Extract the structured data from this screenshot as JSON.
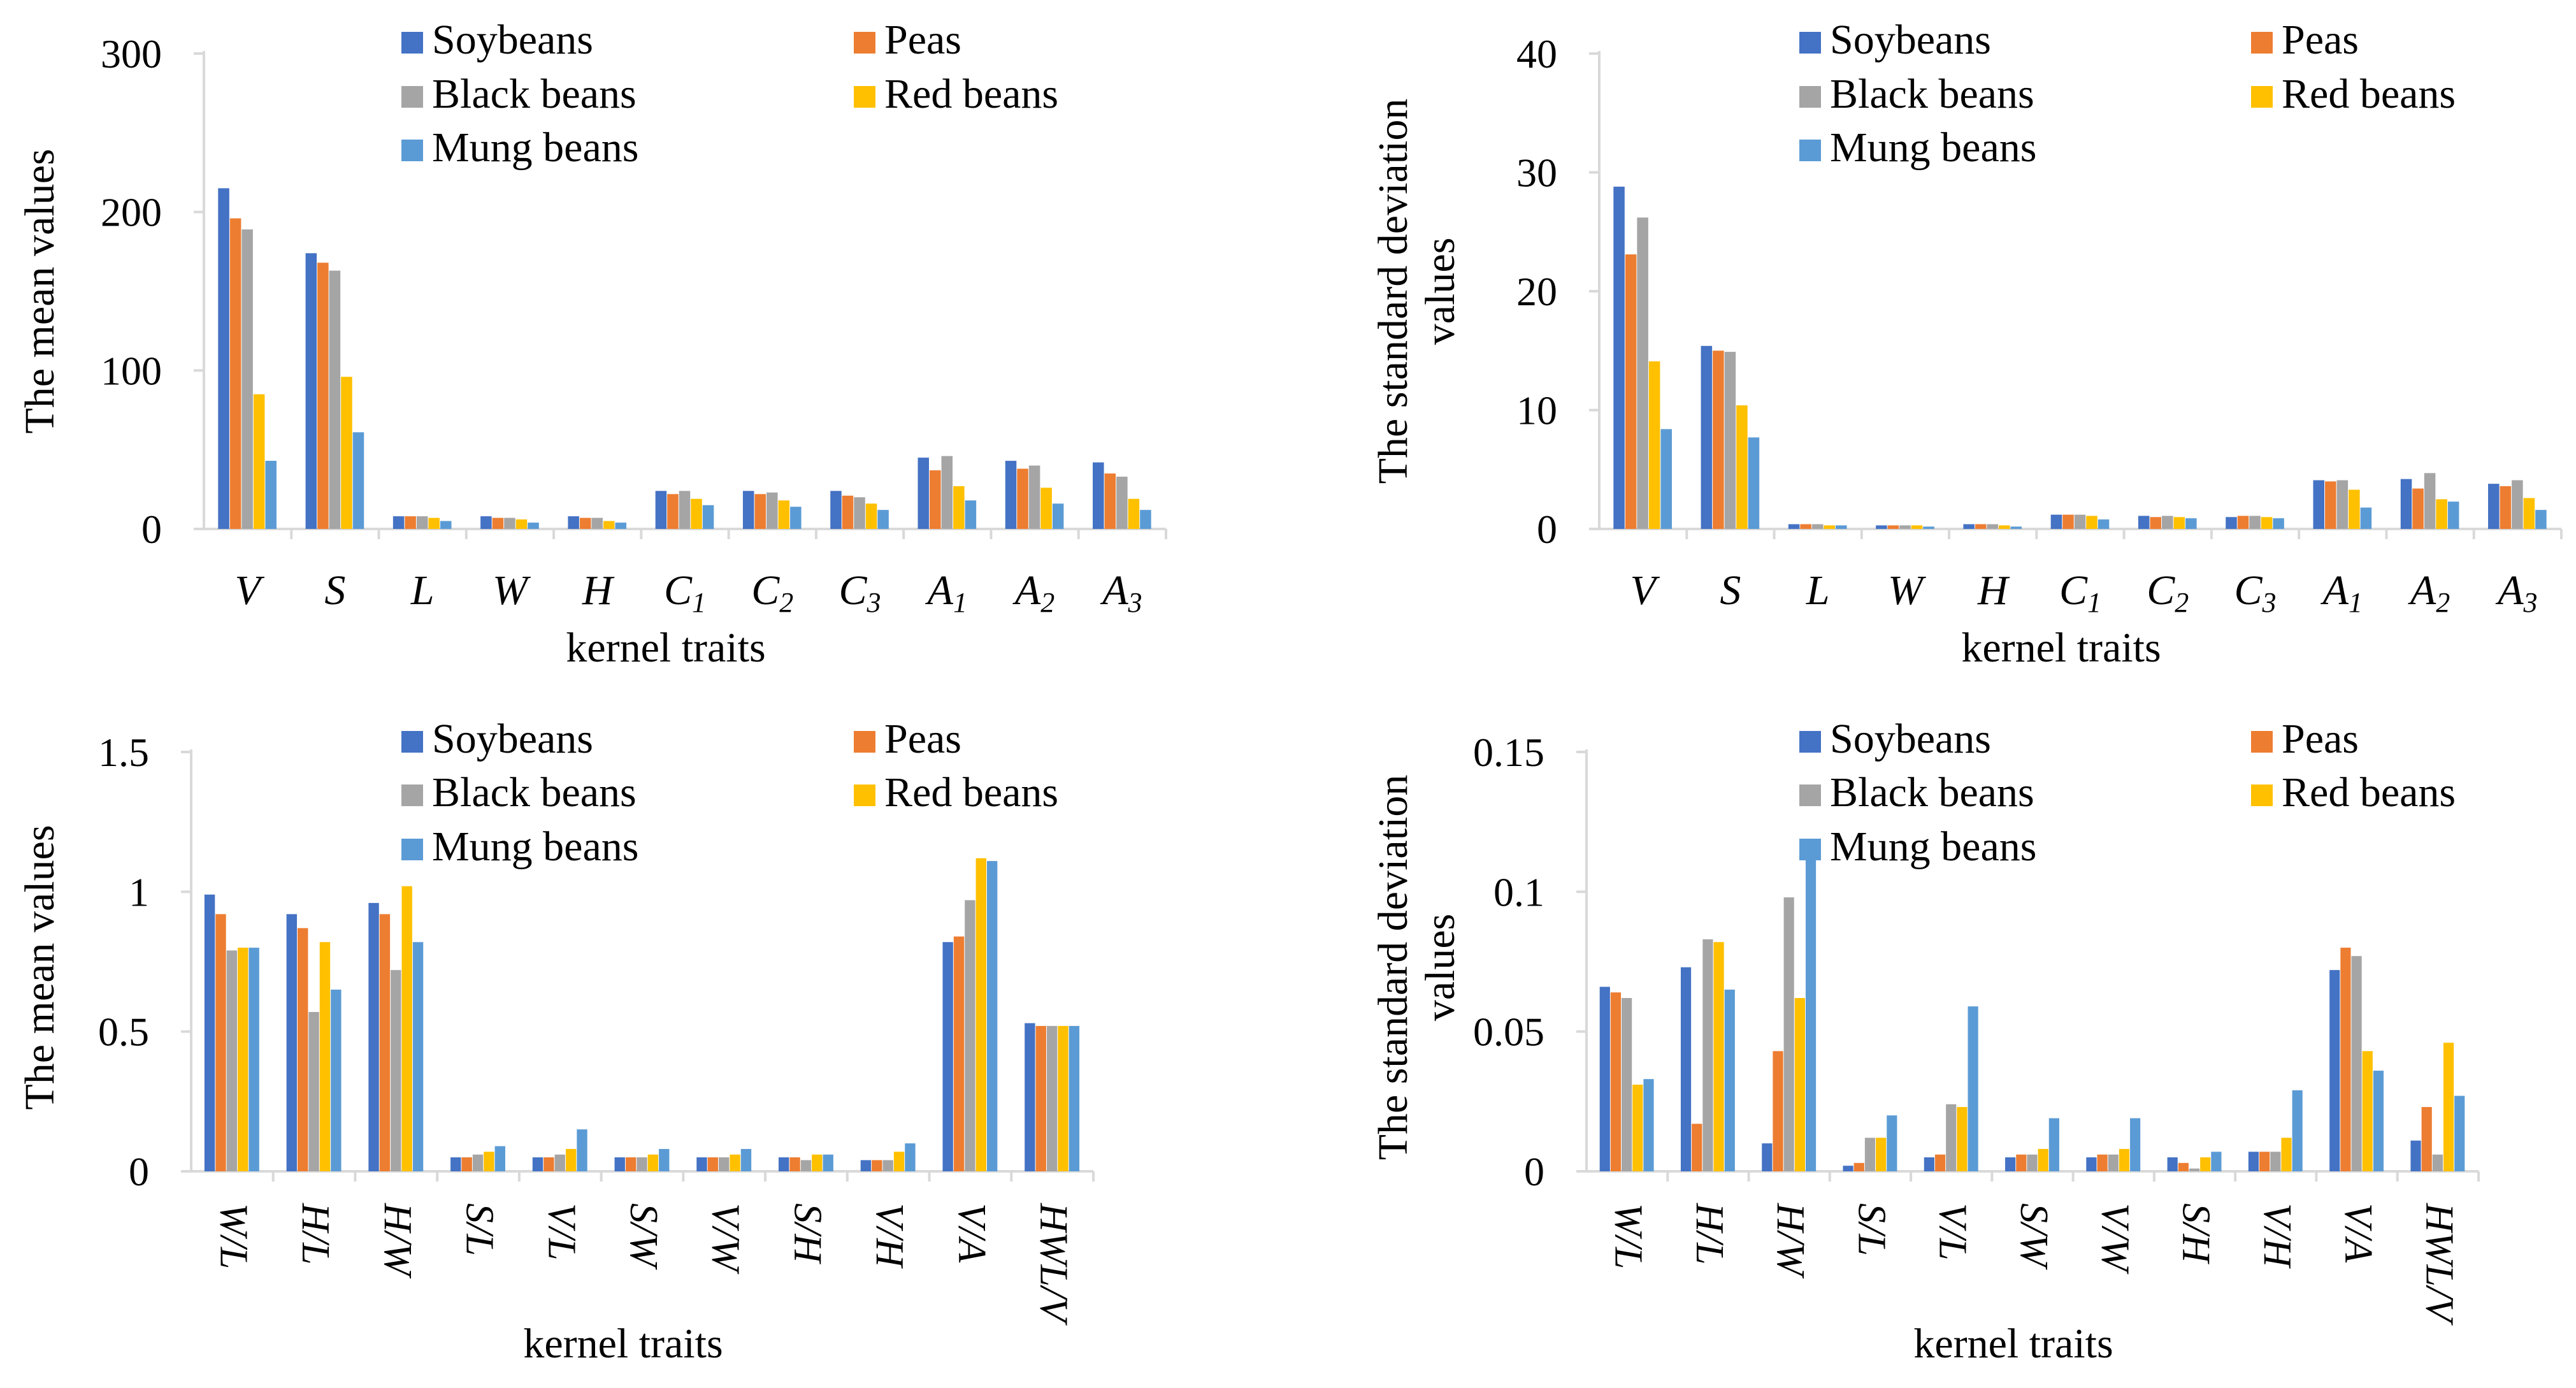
{
  "colors": {
    "Soybeans": "#4472c4",
    "Peas": "#ed7d31",
    "Black beans": "#a5a5a5",
    "Red beans": "#ffc000",
    "Mung beans": "#5b9bd5"
  },
  "chart_data": [
    {
      "type": "bar",
      "ylabel": "The  mean values",
      "xlabel": "kernel traits",
      "ylim": [
        0,
        300
      ],
      "yticks": [
        "0",
        "100",
        "200",
        "300"
      ],
      "ytick_values": [
        0,
        100,
        200,
        300
      ],
      "categories": [
        {
          "base": "V",
          "sub": ""
        },
        {
          "base": "S",
          "sub": ""
        },
        {
          "base": "L",
          "sub": ""
        },
        {
          "base": "W",
          "sub": ""
        },
        {
          "base": "H",
          "sub": ""
        },
        {
          "base": "C",
          "sub": "1"
        },
        {
          "base": "C",
          "sub": "2"
        },
        {
          "base": "C",
          "sub": "3"
        },
        {
          "base": "A",
          "sub": "1"
        },
        {
          "base": "A",
          "sub": "2"
        },
        {
          "base": "A",
          "sub": "3"
        }
      ],
      "legend": [
        "Soybeans",
        "Peas",
        "Black beans",
        "Red beans",
        "Mung beans"
      ],
      "series": [
        {
          "name": "Soybeans",
          "values": [
            215,
            174,
            8,
            8,
            8,
            24,
            24,
            24,
            45,
            43,
            42
          ]
        },
        {
          "name": "Peas",
          "values": [
            196,
            168,
            8,
            7,
            7,
            22,
            22,
            21,
            37,
            38,
            35
          ]
        },
        {
          "name": "Black beans",
          "values": [
            189,
            163,
            8,
            7,
            7,
            24,
            23,
            20,
            46,
            40,
            33
          ]
        },
        {
          "name": "Red beans",
          "values": [
            85,
            96,
            7,
            6,
            5,
            19,
            18,
            16,
            27,
            26,
            19
          ]
        },
        {
          "name": "Mung beans",
          "values": [
            43,
            61,
            5,
            4,
            4,
            15,
            14,
            12,
            18,
            16,
            12
          ]
        }
      ]
    },
    {
      "type": "bar",
      "ylabel": "The standard deviation values",
      "ylabel_lines": [
        "The standard deviation",
        "values"
      ],
      "xlabel": "kernel traits",
      "ylim": [
        0,
        40
      ],
      "yticks": [
        "0",
        "10",
        "20",
        "30",
        "40"
      ],
      "ytick_values": [
        0,
        10,
        20,
        30,
        40
      ],
      "categories": [
        {
          "base": "V",
          "sub": ""
        },
        {
          "base": "S",
          "sub": ""
        },
        {
          "base": "L",
          "sub": ""
        },
        {
          "base": "W",
          "sub": ""
        },
        {
          "base": "H",
          "sub": ""
        },
        {
          "base": "C",
          "sub": "1"
        },
        {
          "base": "C",
          "sub": "2"
        },
        {
          "base": "C",
          "sub": "3"
        },
        {
          "base": "A",
          "sub": "1"
        },
        {
          "base": "A",
          "sub": "2"
        },
        {
          "base": "A",
          "sub": "3"
        }
      ],
      "legend": [
        "Soybeans",
        "Peas",
        "Black beans",
        "Red beans",
        "Mung beans"
      ],
      "series": [
        {
          "name": "Soybeans",
          "values": [
            28.8,
            15.4,
            0.4,
            0.3,
            0.4,
            1.2,
            1.1,
            1.0,
            4.1,
            4.2,
            3.8
          ]
        },
        {
          "name": "Peas",
          "values": [
            23.1,
            15.0,
            0.4,
            0.3,
            0.4,
            1.2,
            1.0,
            1.1,
            4.0,
            3.4,
            3.6
          ]
        },
        {
          "name": "Black beans",
          "values": [
            26.2,
            14.9,
            0.4,
            0.3,
            0.4,
            1.2,
            1.1,
            1.1,
            4.1,
            4.7,
            4.1
          ]
        },
        {
          "name": "Red beans",
          "values": [
            14.1,
            10.4,
            0.3,
            0.3,
            0.3,
            1.1,
            1.0,
            1.0,
            3.3,
            2.5,
            2.6
          ]
        },
        {
          "name": "Mung beans",
          "values": [
            8.4,
            7.7,
            0.3,
            0.2,
            0.2,
            0.8,
            0.9,
            0.9,
            1.8,
            2.3,
            1.6
          ]
        }
      ]
    },
    {
      "type": "bar",
      "ylabel": "The mean values",
      "xlabel": "kernel traits",
      "ylim": [
        0,
        1.5
      ],
      "yticks": [
        "0",
        "0.5",
        "1",
        "1.5"
      ],
      "ytick_values": [
        0,
        0.5,
        1,
        1.5
      ],
      "categories": [
        "W/L",
        "H/L",
        "H/W",
        "S/L",
        "V/L",
        "S/W",
        "V/W",
        "S/H",
        "V/H",
        "V/A",
        "HWL/V"
      ],
      "legend": [
        "Soybeans",
        "Peas",
        "Black beans",
        "Red beans",
        "Mung beans"
      ],
      "series": [
        {
          "name": "Soybeans",
          "values": [
            0.99,
            0.92,
            0.96,
            0.05,
            0.05,
            0.05,
            0.05,
            0.05,
            0.04,
            0.82,
            0.53
          ]
        },
        {
          "name": "Peas",
          "values": [
            0.92,
            0.87,
            0.92,
            0.05,
            0.05,
            0.05,
            0.05,
            0.05,
            0.04,
            0.84,
            0.52
          ]
        },
        {
          "name": "Black beans",
          "values": [
            0.79,
            0.57,
            0.72,
            0.06,
            0.06,
            0.05,
            0.05,
            0.04,
            0.04,
            0.97,
            0.52
          ]
        },
        {
          "name": "Red beans",
          "values": [
            0.8,
            0.82,
            1.02,
            0.07,
            0.08,
            0.06,
            0.06,
            0.06,
            0.07,
            1.12,
            0.52
          ]
        },
        {
          "name": "Mung beans",
          "values": [
            0.8,
            0.65,
            0.82,
            0.09,
            0.15,
            0.08,
            0.08,
            0.06,
            0.1,
            1.11,
            0.52
          ]
        }
      ]
    },
    {
      "type": "bar",
      "ylabel": "The standard deviation values",
      "ylabel_lines": [
        "The standard deviation",
        "values"
      ],
      "xlabel": "kernel traits",
      "ylim": [
        0,
        0.15
      ],
      "yticks": [
        "0",
        "0.05",
        "0.1",
        "0.15"
      ],
      "ytick_values": [
        0,
        0.05,
        0.1,
        0.15
      ],
      "categories": [
        "W/L",
        "H/L",
        "H/W",
        "S/L",
        "V/L",
        "S/W",
        "V/W",
        "S/H",
        "V/H",
        "V/A",
        "HWL/V"
      ],
      "legend": [
        "Soybeans",
        "Peas",
        "Black beans",
        "Red beans",
        "Mung beans"
      ],
      "series": [
        {
          "name": "Soybeans",
          "values": [
            0.066,
            0.073,
            0.01,
            0.002,
            0.005,
            0.005,
            0.005,
            0.005,
            0.007,
            0.072,
            0.011
          ]
        },
        {
          "name": "Peas",
          "values": [
            0.064,
            0.017,
            0.043,
            0.003,
            0.006,
            0.006,
            0.006,
            0.003,
            0.007,
            0.08,
            0.023
          ]
        },
        {
          "name": "Black beans",
          "values": [
            0.062,
            0.083,
            0.098,
            0.012,
            0.024,
            0.006,
            0.006,
            0.001,
            0.007,
            0.077,
            0.006
          ]
        },
        {
          "name": "Red beans",
          "values": [
            0.031,
            0.082,
            0.062,
            0.012,
            0.023,
            0.008,
            0.008,
            0.005,
            0.012,
            0.043,
            0.046
          ]
        },
        {
          "name": "Mung beans",
          "values": [
            0.033,
            0.065,
            0.113,
            0.02,
            0.059,
            0.019,
            0.019,
            0.007,
            0.029,
            0.036,
            0.027
          ]
        }
      ]
    }
  ]
}
